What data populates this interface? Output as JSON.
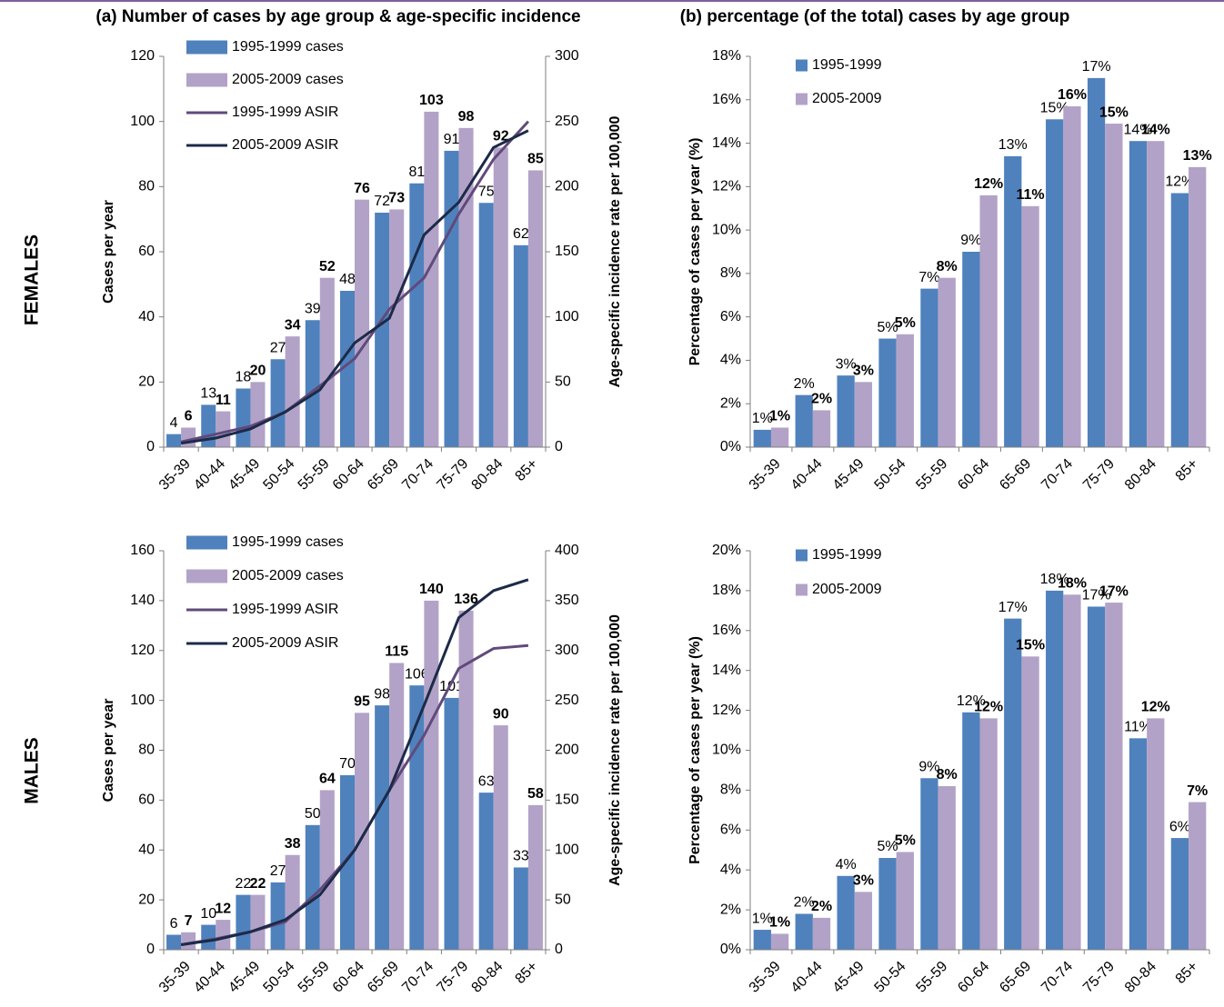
{
  "panel_titles": [
    "(a) Number of cases by age group & age-specific incidence",
    "(b) percentage (of the total) cases by age group"
  ],
  "row_labels": [
    "FEMALES",
    "MALES"
  ],
  "chart_data": [
    {
      "type": "bar",
      "categories": [
        "35-39",
        "40-44",
        "45-49",
        "50-54",
        "55-59",
        "60-64",
        "65-69",
        "70-74",
        "75-79",
        "80-84",
        "85+"
      ],
      "y_label": "Cases per year",
      "y2_label": "Age-specific incidence rate per 100,000",
      "ylim": [
        0,
        120
      ],
      "yticks": [
        0,
        20,
        40,
        60,
        80,
        100,
        120
      ],
      "y2lim": [
        0,
        300
      ],
      "y2ticks": [
        0,
        50,
        100,
        150,
        200,
        250,
        300
      ],
      "grid": false,
      "legend": "upper left",
      "series": [
        {
          "name": "1995-1999 cases",
          "color": "#4f81bd",
          "bold": false,
          "values": [
            4,
            13,
            18,
            27,
            39,
            48,
            72,
            81,
            91,
            75,
            62
          ]
        },
        {
          "name": "2005-2009 cases",
          "color": "#b3a2c7",
          "bold": true,
          "values": [
            6,
            11,
            20,
            34,
            52,
            76,
            73,
            103,
            98,
            92,
            85
          ]
        },
        {
          "name": "1995-1999 ASIR",
          "type": "line",
          "axis": "y2",
          "color": "#604a7b",
          "values": [
            4,
            10,
            16,
            27,
            47,
            68,
            106,
            130,
            179,
            221,
            250
          ]
        },
        {
          "name": "2005-2009 ASIR",
          "type": "line",
          "axis": "y2",
          "color": "#1c2a48",
          "values": [
            3,
            7,
            14,
            27,
            44,
            80,
            99,
            163,
            188,
            230,
            243
          ]
        }
      ]
    },
    {
      "type": "bar",
      "categories": [
        "35-39",
        "40-44",
        "45-49",
        "50-54",
        "55-59",
        "60-64",
        "65-69",
        "70-74",
        "75-79",
        "80-84",
        "85+"
      ],
      "y_label": "Percentage of cases per year (%)",
      "ylim": [
        0,
        18
      ],
      "yticks": [
        {
          "value": 0,
          "label": "0%"
        },
        {
          "value": 2,
          "label": "2%"
        },
        {
          "value": 4,
          "label": "4%"
        },
        {
          "value": 6,
          "label": "6%"
        },
        {
          "value": 8,
          "label": "8%"
        },
        {
          "value": 10,
          "label": "10%"
        },
        {
          "value": 12,
          "label": "12%"
        },
        {
          "value": 14,
          "label": "14%"
        },
        {
          "value": 16,
          "label": "16%"
        },
        {
          "value": 18,
          "label": "18%"
        }
      ],
      "grid": false,
      "legend": "upper left",
      "series": [
        {
          "name": "1995-1999",
          "color": "#4f81bd",
          "bold": false,
          "values": [
            0.8,
            2.4,
            3.3,
            5.0,
            7.3,
            9.0,
            13.4,
            15.1,
            17.0,
            14.1,
            11.7
          ],
          "value_labels": [
            "1%",
            "2%",
            "3%",
            "5%",
            "7%",
            "9%",
            "13%",
            "15%",
            "17%",
            "14%",
            "12%"
          ]
        },
        {
          "name": "2005-2009",
          "color": "#b3a2c7",
          "bold": true,
          "values": [
            0.9,
            1.7,
            3.0,
            5.2,
            7.8,
            11.6,
            11.1,
            15.7,
            14.9,
            14.1,
            12.9
          ],
          "value_labels": [
            "1%",
            "2%",
            "3%",
            "5%",
            "8%",
            "12%",
            "11%",
            "16%",
            "15%",
            "14%",
            "13%"
          ]
        }
      ]
    },
    {
      "type": "bar",
      "categories": [
        "35-39",
        "40-44",
        "45-49",
        "50-54",
        "55-59",
        "60-64",
        "65-69",
        "70-74",
        "75-79",
        "80-84",
        "85+"
      ],
      "y_label": "Cases per year",
      "y2_label": "Age-specific incidence rate per 100,000",
      "ylim": [
        0,
        160
      ],
      "yticks": [
        0,
        20,
        40,
        60,
        80,
        100,
        120,
        140,
        160
      ],
      "y2lim": [
        0,
        400
      ],
      "y2ticks": [
        0,
        50,
        100,
        150,
        200,
        250,
        300,
        350,
        400
      ],
      "grid": false,
      "legend": "upper left",
      "series": [
        {
          "name": "1995-1999 cases",
          "color": "#4f81bd",
          "bold": false,
          "values": [
            6,
            10,
            22,
            27,
            50,
            70,
            98,
            106,
            101,
            63,
            33
          ]
        },
        {
          "name": "2005-2009 cases",
          "color": "#b3a2c7",
          "bold": true,
          "values": [
            7,
            12,
            22,
            38,
            64,
            95,
            115,
            140,
            136,
            90,
            58
          ]
        },
        {
          "name": "1995-1999 ASIR",
          "type": "line",
          "axis": "y2",
          "color": "#604a7b",
          "values": [
            5,
            11,
            18,
            28,
            60,
            100,
            160,
            215,
            282,
            302,
            305
          ]
        },
        {
          "name": "2005-2009 ASIR",
          "type": "line",
          "axis": "y2",
          "color": "#1c2a48",
          "values": [
            5,
            10,
            18,
            30,
            55,
            100,
            160,
            245,
            333,
            360,
            371
          ]
        }
      ]
    },
    {
      "type": "bar",
      "categories": [
        "35-39",
        "40-44",
        "45-49",
        "50-54",
        "55-59",
        "60-64",
        "65-69",
        "70-74",
        "75-79",
        "80-84",
        "85+"
      ],
      "y_label": "Percentage of cases per year (%)",
      "ylim": [
        0,
        20
      ],
      "yticks": [
        {
          "value": 0,
          "label": "0%"
        },
        {
          "value": 2,
          "label": "2%"
        },
        {
          "value": 4,
          "label": "4%"
        },
        {
          "value": 6,
          "label": "6%"
        },
        {
          "value": 8,
          "label": "8%"
        },
        {
          "value": 10,
          "label": "10%"
        },
        {
          "value": 12,
          "label": "12%"
        },
        {
          "value": 14,
          "label": "14%"
        },
        {
          "value": 16,
          "label": "16%"
        },
        {
          "value": 18,
          "label": "18%"
        },
        {
          "value": 20,
          "label": "20%"
        }
      ],
      "grid": false,
      "legend": "upper left",
      "series": [
        {
          "name": "1995-1999",
          "color": "#4f81bd",
          "bold": false,
          "values": [
            1.0,
            1.8,
            3.7,
            4.6,
            8.6,
            11.9,
            16.6,
            18.0,
            17.2,
            10.6,
            5.6
          ],
          "value_labels": [
            "1%",
            "2%",
            "4%",
            "5%",
            "9%",
            "12%",
            "17%",
            "18%",
            "17%",
            "11%",
            "6%"
          ]
        },
        {
          "name": "2005-2009",
          "color": "#b3a2c7",
          "bold": true,
          "values": [
            0.8,
            1.6,
            2.9,
            4.9,
            8.2,
            11.6,
            14.7,
            17.8,
            17.4,
            11.6,
            7.4
          ],
          "value_labels": [
            "1%",
            "2%",
            "3%",
            "5%",
            "8%",
            "12%",
            "15%",
            "18%",
            "17%",
            "12%",
            "7%"
          ]
        }
      ]
    }
  ]
}
